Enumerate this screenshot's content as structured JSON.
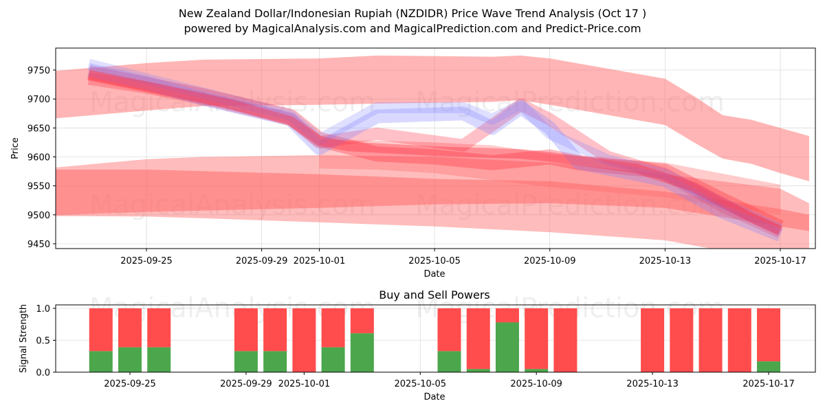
{
  "header": {
    "title": "New Zealand Dollar/Indonesian Rupiah (NZDIDR) Price Wave Trend Analysis (Oct 17 )",
    "subtitle": "powered by MagicalAnalysis.com and MagicalPrediction.com and Predict-Price.com"
  },
  "watermarks": [
    "MagicalAnalysis.com",
    "MagicalPrediction.com"
  ],
  "colors": {
    "band": "#ff6b6b",
    "wave_red": "#ff3344",
    "wave_blue": "#8080ff",
    "buy": "#4ca64c",
    "sell": "#ff4c4c"
  },
  "chart_data": [
    {
      "type": "area",
      "title": "",
      "xlabel": "Date",
      "ylabel": "Price",
      "ylim": [
        9440,
        9790
      ],
      "xlim": [
        "2025-09-21",
        "2025-10-18"
      ],
      "grid": true,
      "yticks": [
        9450,
        9500,
        9550,
        9600,
        9650,
        9700,
        9750
      ],
      "xticks": [
        "2025-09-25",
        "2025-09-29",
        "2025-10-01",
        "2025-10-05",
        "2025-10-09",
        "2025-10-13",
        "2025-10-17"
      ],
      "bands": [
        {
          "name": "upper-trend-band",
          "opacity": 0.5,
          "x": [
            "2025-09-21",
            "2025-09-25",
            "2025-09-27",
            "2025-10-01",
            "2025-10-03",
            "2025-10-07",
            "2025-10-08",
            "2025-10-09",
            "2025-10-13",
            "2025-10-14",
            "2025-10-15",
            "2025-10-16",
            "2025-10-17",
            "2025-10-18"
          ],
          "upper": [
            9745,
            9762,
            9768,
            9770,
            9775,
            9773,
            9775,
            9770,
            9735,
            9705,
            9672,
            9664,
            9650,
            9636
          ],
          "lower": [
            9663,
            9680,
            9688,
            9690,
            9692,
            9695,
            9698,
            9690,
            9655,
            9625,
            9597,
            9588,
            9572,
            9558
          ]
        },
        {
          "name": "lower-wide-band",
          "opacity": 0.45,
          "x": [
            "2025-09-21",
            "2025-09-25",
            "2025-09-27",
            "2025-10-01",
            "2025-10-05",
            "2025-10-09",
            "2025-10-13",
            "2025-10-17",
            "2025-10-18"
          ],
          "upper": [
            9578,
            9596,
            9600,
            9603,
            9600,
            9590,
            9570,
            9545,
            9520
          ],
          "lower": [
            9498,
            9497,
            9494,
            9487,
            9480,
            9470,
            9456,
            9420,
            9400
          ]
        },
        {
          "name": "lower-core-band",
          "opacity": 0.55,
          "x": [
            "2025-09-21",
            "2025-09-25",
            "2025-10-01",
            "2025-10-05",
            "2025-10-09",
            "2025-10-13",
            "2025-10-17",
            "2025-10-18"
          ],
          "upper": [
            9578,
            9578,
            9570,
            9562,
            9558,
            9540,
            9510,
            9500
          ],
          "lower": [
            9498,
            9505,
            9512,
            9518,
            9520,
            9512,
            9480,
            9472
          ]
        },
        {
          "name": "mid-red-band",
          "opacity": 0.35,
          "x": [
            "2025-10-01",
            "2025-10-03",
            "2025-10-05",
            "2025-10-07",
            "2025-10-09",
            "2025-10-13",
            "2025-10-17"
          ],
          "upper": [
            9630,
            9628,
            9625,
            9620,
            9605,
            9590,
            9552
          ],
          "lower": [
            9580,
            9578,
            9572,
            9560,
            9548,
            9530,
            9500
          ]
        }
      ],
      "waves": [
        {
          "name": "wave-red-1",
          "color": "red",
          "width": 22,
          "opacity": 0.35,
          "x": [
            "2025-09-23",
            "2025-09-25",
            "2025-09-27",
            "2025-09-30",
            "2025-10-01",
            "2025-10-03",
            "2025-10-05",
            "2025-10-07",
            "2025-10-09",
            "2025-10-10",
            "2025-10-13",
            "2025-10-15",
            "2025-10-17"
          ],
          "y": [
            9745,
            9725,
            9705,
            9670,
            9630,
            9605,
            9600,
            9590,
            9600,
            9590,
            9575,
            9525,
            9478
          ]
        },
        {
          "name": "wave-red-2",
          "color": "red",
          "width": 18,
          "opacity": 0.3,
          "x": [
            "2025-09-23",
            "2025-09-25",
            "2025-09-27",
            "2025-09-30",
            "2025-10-01",
            "2025-10-03",
            "2025-10-06",
            "2025-10-08",
            "2025-10-09",
            "2025-10-11",
            "2025-10-13",
            "2025-10-15",
            "2025-10-17"
          ],
          "y": [
            9735,
            9720,
            9700,
            9665,
            9625,
            9640,
            9620,
            9690,
            9665,
            9600,
            9570,
            9515,
            9470
          ]
        },
        {
          "name": "wave-blue-1",
          "color": "blue",
          "width": 20,
          "opacity": 0.3,
          "x": [
            "2025-09-23",
            "2025-09-25",
            "2025-09-27",
            "2025-09-30",
            "2025-10-01",
            "2025-10-03",
            "2025-10-06",
            "2025-10-07",
            "2025-10-08",
            "2025-10-09",
            "2025-10-10",
            "2025-10-13",
            "2025-10-15",
            "2025-10-17"
          ],
          "y": [
            9750,
            9728,
            9700,
            9665,
            9615,
            9670,
            9675,
            9650,
            9685,
            9650,
            9590,
            9560,
            9505,
            9465
          ]
        },
        {
          "name": "wave-blue-2",
          "color": "blue",
          "width": 16,
          "opacity": 0.25,
          "x": [
            "2025-09-23",
            "2025-09-25",
            "2025-09-27",
            "2025-09-30",
            "2025-10-01",
            "2025-10-03",
            "2025-10-06",
            "2025-10-07",
            "2025-10-08",
            "2025-10-09",
            "2025-10-11",
            "2025-10-13",
            "2025-10-15",
            "2025-10-17"
          ],
          "y": [
            9760,
            9735,
            9710,
            9672,
            9630,
            9685,
            9685,
            9665,
            9690,
            9640,
            9595,
            9570,
            9520,
            9475
          ]
        },
        {
          "name": "wave-red-3",
          "color": "red",
          "width": 14,
          "opacity": 0.4,
          "x": [
            "2025-09-23",
            "2025-09-25",
            "2025-09-28",
            "2025-09-30",
            "2025-10-01",
            "2025-10-02",
            "2025-10-05",
            "2025-10-08",
            "2025-10-09",
            "2025-10-12",
            "2025-10-14",
            "2025-10-16",
            "2025-10-17"
          ],
          "y": [
            9742,
            9722,
            9690,
            9662,
            9628,
            9618,
            9610,
            9605,
            9600,
            9580,
            9548,
            9495,
            9472
          ]
        }
      ]
    },
    {
      "type": "bar",
      "title": "Buy and Sell Powers",
      "xlabel": "Date",
      "ylabel": "Signal Strength",
      "ylim": [
        0,
        1.05
      ],
      "yticks": [
        0.0,
        0.5,
        1.0
      ],
      "ytick_labels": [
        "0.0",
        "0.5",
        "1.0"
      ],
      "xticks": [
        "2025-09-25",
        "2025-09-29",
        "2025-10-01",
        "2025-10-05",
        "2025-10-09",
        "2025-10-13",
        "2025-10-17"
      ],
      "xlim": [
        "2025-09-21",
        "2025-10-18"
      ],
      "grid": true,
      "categories": [
        "2025-09-24",
        "2025-09-25",
        "2025-09-26",
        "2025-09-29",
        "2025-09-30",
        "2025-10-01",
        "2025-10-02",
        "2025-10-03",
        "2025-10-06",
        "2025-10-07",
        "2025-10-08",
        "2025-10-09",
        "2025-10-10",
        "2025-10-13",
        "2025-10-14",
        "2025-10-15",
        "2025-10-16",
        "2025-10-17"
      ],
      "series": [
        {
          "name": "Buy",
          "values": [
            0.33,
            0.39,
            0.39,
            0.33,
            0.33,
            0.0,
            0.39,
            0.61,
            0.33,
            0.05,
            0.78,
            0.05,
            0.0,
            0.0,
            0.0,
            0.0,
            0.0,
            0.17
          ]
        },
        {
          "name": "Sell",
          "values": [
            0.67,
            0.61,
            0.61,
            0.67,
            0.67,
            1.0,
            0.61,
            0.39,
            0.67,
            0.95,
            0.22,
            0.95,
            1.0,
            1.0,
            1.0,
            1.0,
            1.0,
            0.83
          ]
        }
      ]
    }
  ]
}
